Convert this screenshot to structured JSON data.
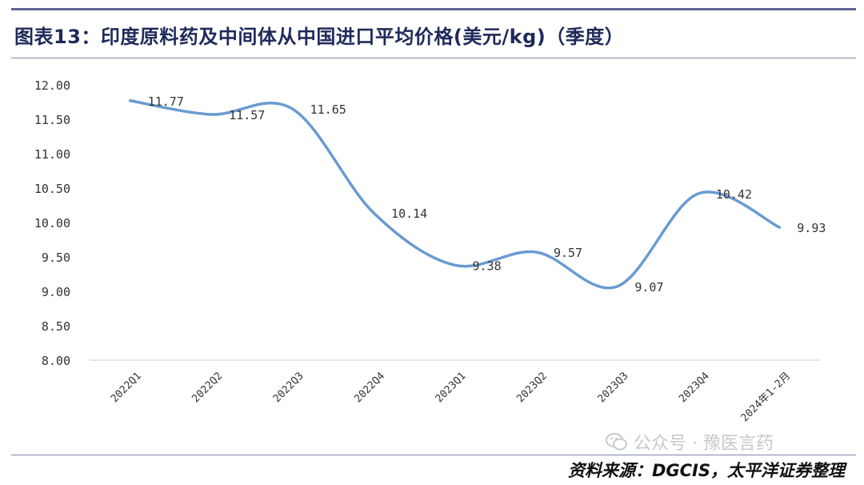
{
  "header": {
    "title": "图表13：印度原料药及中间体从中国进口平均价格(美元/kg)（季度）"
  },
  "footer": {
    "source": "资料来源：DGCIS，太平洋证券整理",
    "watermark_text": "公众号 · 豫医言药",
    "watermark_icon": "wechat-icon"
  },
  "colors": {
    "line": "#6a9bd1",
    "axis": "#d9d9d9",
    "text": "#333333",
    "title": "#1f2a5a",
    "rule": "#5b6590"
  },
  "chart_data": {
    "type": "line",
    "smooth": true,
    "categories": [
      "2022Q1",
      "2022Q2",
      "2022Q3",
      "2022Q4",
      "2023Q1",
      "2023Q2",
      "2023Q3",
      "2023Q4",
      "2024年1-2月"
    ],
    "series": [
      {
        "values": [
          11.77,
          11.57,
          11.65,
          10.14,
          9.38,
          9.57,
          9.07,
          10.42,
          9.93
        ],
        "labels": [
          "11.77",
          "11.57",
          "11.65",
          "10.14",
          "9.38",
          "9.57",
          "9.07",
          "10.42",
          "9.93"
        ]
      }
    ],
    "ylim": [
      8.0,
      12.0
    ],
    "yticks": [
      8.0,
      8.5,
      9.0,
      9.5,
      10.0,
      10.5,
      11.0,
      11.5,
      12.0
    ],
    "ytick_labels": [
      "8.00",
      "8.50",
      "9.00",
      "9.50",
      "10.00",
      "10.50",
      "11.00",
      "11.50",
      "12.00"
    ],
    "grid": false,
    "legend": "none"
  }
}
